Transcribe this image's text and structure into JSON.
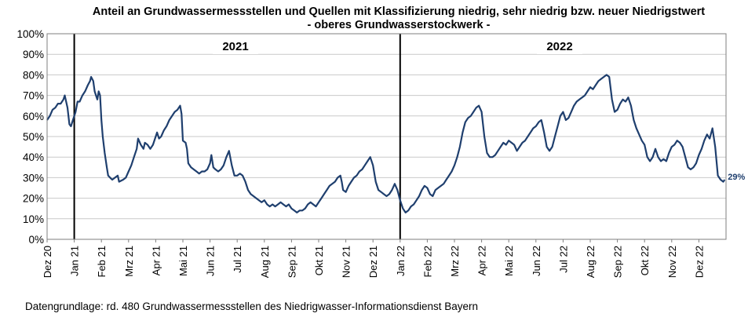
{
  "chart_data": {
    "type": "line",
    "title": "Anteil an Grundwassermessstellen und Quellen mit Klassifizierung niedrig, sehr niedrig bzw. neuer Niedrigstwert",
    "subtitle": "- oberes Grundwasserstockwerk -",
    "xlabel": "",
    "ylabel": "",
    "ylim": [
      0,
      100
    ],
    "y_ticks": [
      "0%",
      "10%",
      "20%",
      "30%",
      "40%",
      "50%",
      "60%",
      "70%",
      "80%",
      "90%",
      "100%"
    ],
    "x_ticks": [
      "Dez 20",
      "Jan 21",
      "Feb 21",
      "Mrz 21",
      "Apr 21",
      "Mai 21",
      "Jun 21",
      "Jul 21",
      "Aug 21",
      "Sep 21",
      "Okt 21",
      "Nov 21",
      "Dez 21",
      "Jan 22",
      "Feb 22",
      "Mrz 22",
      "Apr 22",
      "Mai 22",
      "Jun 22",
      "Jul 22",
      "Aug 22",
      "Sep 22",
      "Okt 22",
      "Nov 22",
      "Dez 22"
    ],
    "x_domain": [
      0,
      25
    ],
    "year_markers": [
      {
        "label": "2021",
        "x": 1
      },
      {
        "label": "2022",
        "x": 13
      }
    ],
    "end_label": "29%",
    "grid": true,
    "line_color": "#1f3f6e",
    "series": [
      {
        "name": "",
        "points": [
          [
            0.0,
            58
          ],
          [
            0.1,
            60
          ],
          [
            0.2,
            63
          ],
          [
            0.3,
            64
          ],
          [
            0.4,
            66
          ],
          [
            0.5,
            66
          ],
          [
            0.6,
            68
          ],
          [
            0.65,
            70
          ],
          [
            0.75,
            64
          ],
          [
            0.82,
            56
          ],
          [
            0.88,
            55
          ],
          [
            0.95,
            58
          ],
          [
            1.05,
            62
          ],
          [
            1.12,
            67
          ],
          [
            1.2,
            67
          ],
          [
            1.3,
            70
          ],
          [
            1.4,
            72
          ],
          [
            1.5,
            75
          ],
          [
            1.58,
            77
          ],
          [
            1.62,
            79
          ],
          [
            1.7,
            77
          ],
          [
            1.75,
            72
          ],
          [
            1.8,
            70
          ],
          [
            1.85,
            68
          ],
          [
            1.9,
            72
          ],
          [
            1.95,
            70
          ],
          [
            2.0,
            58
          ],
          [
            2.05,
            50
          ],
          [
            2.12,
            42
          ],
          [
            2.2,
            35
          ],
          [
            2.25,
            31
          ],
          [
            2.32,
            30
          ],
          [
            2.4,
            29
          ],
          [
            2.5,
            30
          ],
          [
            2.6,
            31
          ],
          [
            2.65,
            28
          ],
          [
            2.8,
            29
          ],
          [
            2.9,
            30
          ],
          [
            3.0,
            33
          ],
          [
            3.1,
            36
          ],
          [
            3.2,
            40
          ],
          [
            3.3,
            44
          ],
          [
            3.35,
            49
          ],
          [
            3.45,
            46
          ],
          [
            3.55,
            44
          ],
          [
            3.6,
            47
          ],
          [
            3.7,
            46
          ],
          [
            3.8,
            44
          ],
          [
            3.9,
            46
          ],
          [
            4.0,
            50
          ],
          [
            4.05,
            52
          ],
          [
            4.12,
            49
          ],
          [
            4.2,
            50
          ],
          [
            4.3,
            53
          ],
          [
            4.4,
            55
          ],
          [
            4.5,
            58
          ],
          [
            4.6,
            60
          ],
          [
            4.7,
            62
          ],
          [
            4.8,
            63
          ],
          [
            4.9,
            65
          ],
          [
            4.95,
            61
          ],
          [
            5.0,
            48
          ],
          [
            5.1,
            47
          ],
          [
            5.15,
            44
          ],
          [
            5.2,
            37
          ],
          [
            5.3,
            35
          ],
          [
            5.4,
            34
          ],
          [
            5.5,
            33
          ],
          [
            5.6,
            32
          ],
          [
            5.7,
            33
          ],
          [
            5.8,
            33
          ],
          [
            5.9,
            34
          ],
          [
            6.0,
            37
          ],
          [
            6.05,
            41
          ],
          [
            6.12,
            35
          ],
          [
            6.2,
            34
          ],
          [
            6.3,
            33
          ],
          [
            6.4,
            34
          ],
          [
            6.5,
            36
          ],
          [
            6.6,
            40
          ],
          [
            6.7,
            43
          ],
          [
            6.8,
            36
          ],
          [
            6.9,
            31
          ],
          [
            6.95,
            31
          ],
          [
            7.0,
            31
          ],
          [
            7.1,
            32
          ],
          [
            7.2,
            31
          ],
          [
            7.3,
            28
          ],
          [
            7.4,
            24
          ],
          [
            7.5,
            22
          ],
          [
            7.6,
            21
          ],
          [
            7.7,
            20
          ],
          [
            7.8,
            19
          ],
          [
            7.9,
            18
          ],
          [
            8.0,
            19
          ],
          [
            8.1,
            17
          ],
          [
            8.2,
            16
          ],
          [
            8.3,
            17
          ],
          [
            8.4,
            16
          ],
          [
            8.5,
            17
          ],
          [
            8.6,
            18
          ],
          [
            8.7,
            17
          ],
          [
            8.8,
            16
          ],
          [
            8.9,
            17
          ],
          [
            9.0,
            15
          ],
          [
            9.1,
            14
          ],
          [
            9.2,
            13
          ],
          [
            9.3,
            14
          ],
          [
            9.4,
            14
          ],
          [
            9.5,
            15
          ],
          [
            9.6,
            17
          ],
          [
            9.7,
            18
          ],
          [
            9.8,
            17
          ],
          [
            9.9,
            16
          ],
          [
            10.0,
            18
          ],
          [
            10.1,
            20
          ],
          [
            10.2,
            22
          ],
          [
            10.3,
            24
          ],
          [
            10.4,
            26
          ],
          [
            10.5,
            27
          ],
          [
            10.6,
            28
          ],
          [
            10.7,
            30
          ],
          [
            10.8,
            31
          ],
          [
            10.85,
            28
          ],
          [
            10.9,
            24
          ],
          [
            11.0,
            23
          ],
          [
            11.1,
            26
          ],
          [
            11.2,
            28
          ],
          [
            11.3,
            30
          ],
          [
            11.4,
            31
          ],
          [
            11.5,
            33
          ],
          [
            11.6,
            34
          ],
          [
            11.7,
            36
          ],
          [
            11.8,
            38
          ],
          [
            11.9,
            40
          ],
          [
            12.0,
            36
          ],
          [
            12.1,
            28
          ],
          [
            12.2,
            24
          ],
          [
            12.3,
            23
          ],
          [
            12.4,
            22
          ],
          [
            12.5,
            21
          ],
          [
            12.6,
            22
          ],
          [
            12.7,
            24
          ],
          [
            12.8,
            27
          ],
          [
            12.9,
            24
          ],
          [
            13.0,
            19
          ],
          [
            13.1,
            15
          ],
          [
            13.2,
            13
          ],
          [
            13.3,
            14
          ],
          [
            13.4,
            16
          ],
          [
            13.5,
            17
          ],
          [
            13.6,
            19
          ],
          [
            13.7,
            21
          ],
          [
            13.8,
            24
          ],
          [
            13.9,
            26
          ],
          [
            14.0,
            25
          ],
          [
            14.1,
            22
          ],
          [
            14.2,
            21
          ],
          [
            14.3,
            24
          ],
          [
            14.4,
            25
          ],
          [
            14.5,
            26
          ],
          [
            14.6,
            27
          ],
          [
            14.7,
            29
          ],
          [
            14.8,
            31
          ],
          [
            14.9,
            33
          ],
          [
            15.0,
            36
          ],
          [
            15.1,
            40
          ],
          [
            15.2,
            45
          ],
          [
            15.3,
            52
          ],
          [
            15.4,
            57
          ],
          [
            15.5,
            59
          ],
          [
            15.6,
            60
          ],
          [
            15.7,
            62
          ],
          [
            15.8,
            64
          ],
          [
            15.9,
            65
          ],
          [
            16.0,
            62
          ],
          [
            16.1,
            50
          ],
          [
            16.2,
            42
          ],
          [
            16.3,
            40
          ],
          [
            16.4,
            40
          ],
          [
            16.5,
            41
          ],
          [
            16.6,
            43
          ],
          [
            16.7,
            45
          ],
          [
            16.8,
            47
          ],
          [
            16.9,
            46
          ],
          [
            17.0,
            48
          ],
          [
            17.1,
            47
          ],
          [
            17.2,
            46
          ],
          [
            17.3,
            43
          ],
          [
            17.4,
            45
          ],
          [
            17.5,
            47
          ],
          [
            17.6,
            48
          ],
          [
            17.7,
            50
          ],
          [
            17.8,
            52
          ],
          [
            17.9,
            54
          ],
          [
            18.0,
            55
          ],
          [
            18.1,
            57
          ],
          [
            18.2,
            58
          ],
          [
            18.3,
            52
          ],
          [
            18.4,
            45
          ],
          [
            18.5,
            43
          ],
          [
            18.6,
            45
          ],
          [
            18.7,
            50
          ],
          [
            18.8,
            55
          ],
          [
            18.9,
            60
          ],
          [
            19.0,
            62
          ],
          [
            19.1,
            58
          ],
          [
            19.2,
            59
          ],
          [
            19.3,
            62
          ],
          [
            19.4,
            65
          ],
          [
            19.5,
            67
          ],
          [
            19.6,
            68
          ],
          [
            19.7,
            69
          ],
          [
            19.8,
            70
          ],
          [
            19.9,
            72
          ],
          [
            20.0,
            74
          ],
          [
            20.1,
            73
          ],
          [
            20.2,
            75
          ],
          [
            20.3,
            77
          ],
          [
            20.4,
            78
          ],
          [
            20.5,
            79
          ],
          [
            20.6,
            80
          ],
          [
            20.7,
            79
          ],
          [
            20.8,
            68
          ],
          [
            20.9,
            62
          ],
          [
            21.0,
            63
          ],
          [
            21.1,
            66
          ],
          [
            21.2,
            68
          ],
          [
            21.3,
            67
          ],
          [
            21.4,
            69
          ],
          [
            21.5,
            65
          ],
          [
            21.6,
            58
          ],
          [
            21.7,
            54
          ],
          [
            21.8,
            51
          ],
          [
            21.9,
            48
          ],
          [
            22.0,
            46
          ],
          [
            22.1,
            40
          ],
          [
            22.2,
            38
          ],
          [
            22.3,
            40
          ],
          [
            22.4,
            44
          ],
          [
            22.5,
            40
          ],
          [
            22.6,
            38
          ],
          [
            22.7,
            39
          ],
          [
            22.8,
            38
          ],
          [
            22.9,
            42
          ],
          [
            23.0,
            45
          ],
          [
            23.1,
            46
          ],
          [
            23.2,
            48
          ],
          [
            23.3,
            47
          ],
          [
            23.4,
            45
          ],
          [
            23.5,
            40
          ],
          [
            23.6,
            35
          ],
          [
            23.7,
            34
          ],
          [
            23.8,
            35
          ],
          [
            23.9,
            37
          ],
          [
            24.0,
            41
          ],
          [
            24.1,
            44
          ],
          [
            24.2,
            48
          ],
          [
            24.3,
            51
          ],
          [
            24.4,
            49
          ],
          [
            24.5,
            54
          ],
          [
            24.6,
            45
          ],
          [
            24.7,
            31
          ],
          [
            24.8,
            29
          ],
          [
            24.9,
            28
          ],
          [
            24.95,
            29
          ]
        ]
      }
    ]
  },
  "footer": {
    "source": "Datengrundlage:  rd. 480 Grundwassermessstellen  des Niedrigwasser-Informationsdienst  Bayern"
  }
}
